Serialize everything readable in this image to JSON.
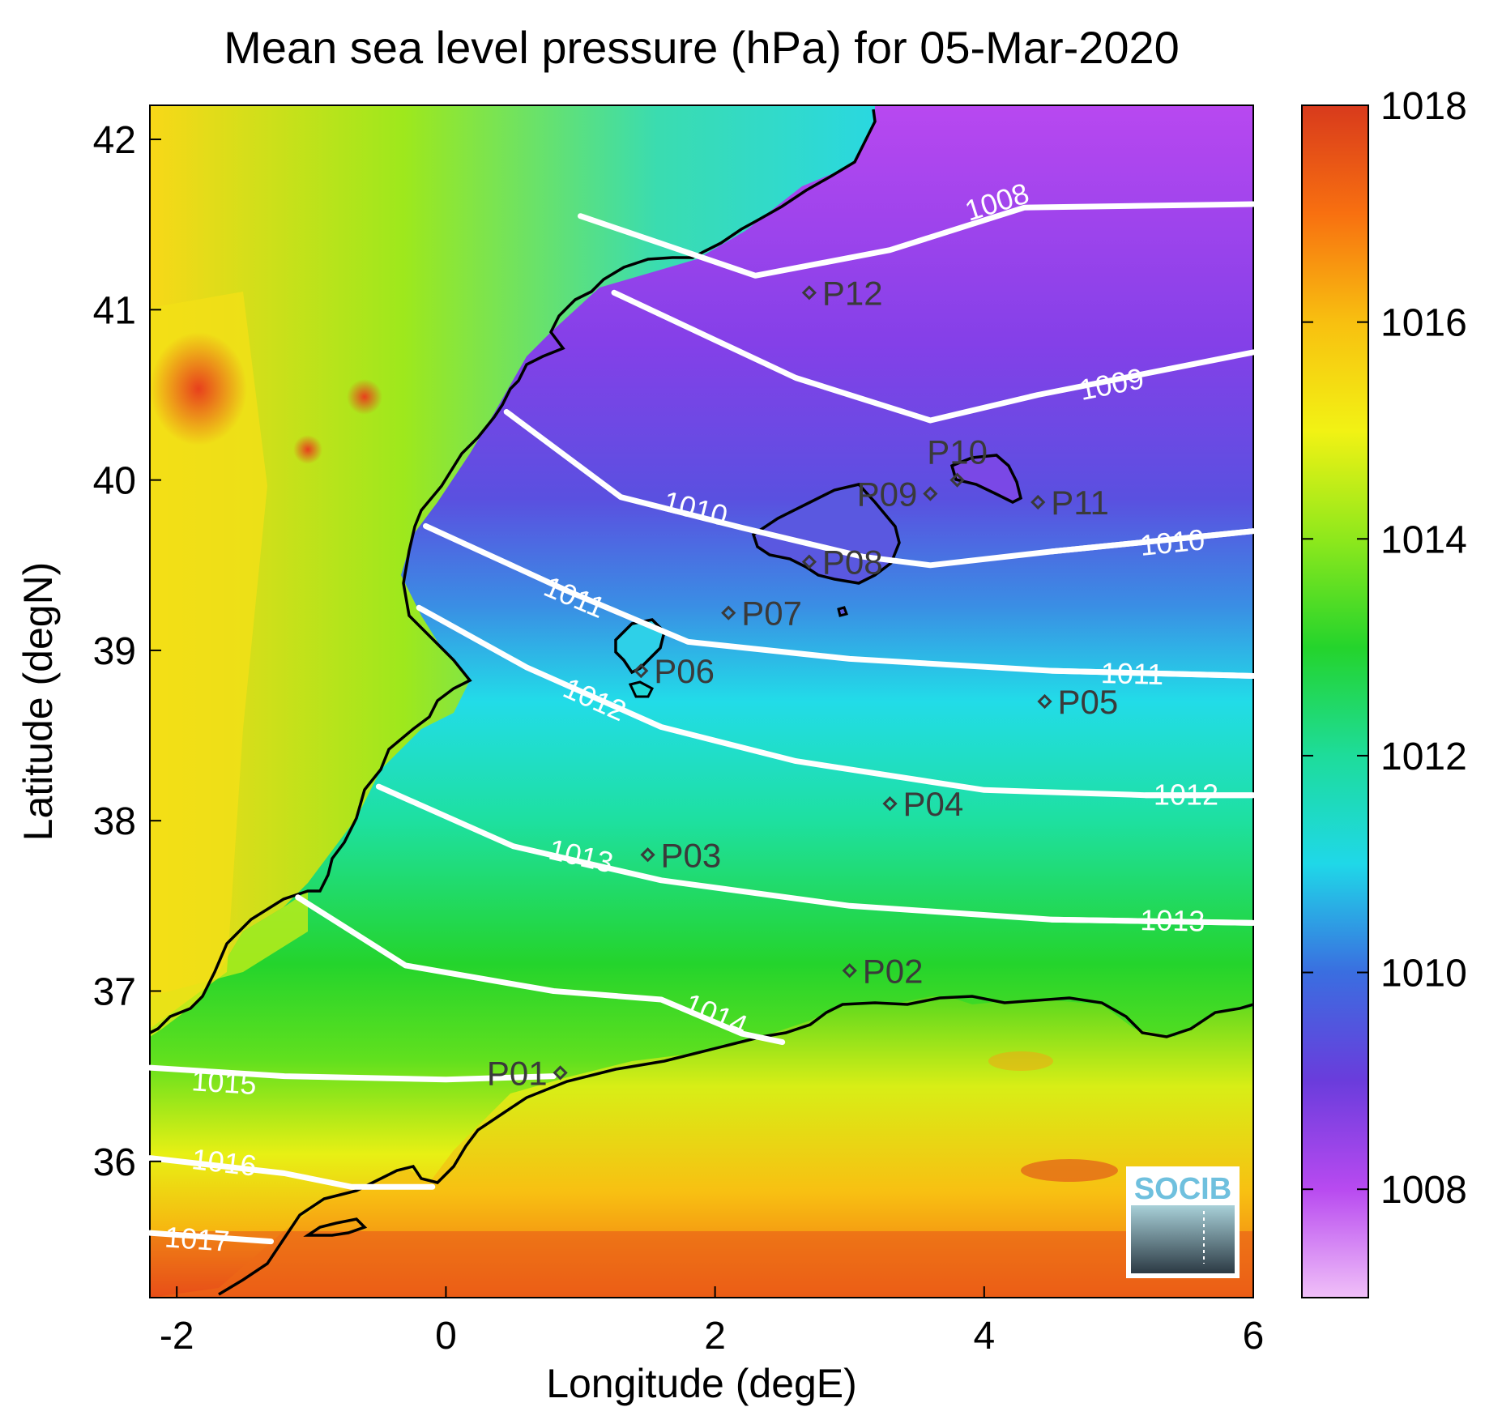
{
  "title": "Mean sea level pressure (hPa) for 05-Mar-2020",
  "x_axis": {
    "label": "Longitude (degE)",
    "range": [
      -2.2,
      6.0
    ],
    "ticks": [
      -2,
      0,
      2,
      4,
      6
    ],
    "tick_labels": [
      "-2",
      "0",
      "2",
      "4",
      "6"
    ]
  },
  "y_axis": {
    "label": "Latitude (degN)",
    "range": [
      35.2,
      42.2
    ],
    "ticks": [
      36,
      37,
      38,
      39,
      40,
      41,
      42
    ],
    "tick_labels": [
      "36",
      "37",
      "38",
      "39",
      "40",
      "41",
      "42"
    ]
  },
  "colorbar": {
    "range": [
      1007,
      1018
    ],
    "ticks": [
      1008,
      1010,
      1012,
      1014,
      1016,
      1018
    ],
    "tick_labels": [
      "1008",
      "1010",
      "1012",
      "1014",
      "1016",
      "1018"
    ],
    "colors": [
      "#f0c0f8",
      "#b84af0",
      "#6a3cdc",
      "#3a6ee0",
      "#1fd8e8",
      "#1edc9a",
      "#24d42c",
      "#8ee81c",
      "#f2f214",
      "#f8c010",
      "#f87010",
      "#d83a1c"
    ]
  },
  "contours": [
    {
      "label": "1008",
      "points": [
        [
          1.0,
          41.55
        ],
        [
          2.3,
          41.2
        ],
        [
          3.3,
          41.35
        ],
        [
          4.3,
          41.6
        ],
        [
          6.0,
          41.62
        ]
      ],
      "label_at": [
        4.1,
        41.62
      ]
    },
    {
      "label": "1009",
      "points": [
        [
          1.25,
          41.1
        ],
        [
          2.6,
          40.6
        ],
        [
          3.6,
          40.35
        ],
        [
          4.4,
          40.5
        ],
        [
          6.0,
          40.75
        ]
      ],
      "label_at": [
        4.95,
        40.55
      ]
    },
    {
      "label": "1010",
      "points": [
        [
          0.45,
          40.4
        ],
        [
          1.3,
          39.9
        ],
        [
          2.2,
          39.72
        ],
        [
          3.1,
          39.55
        ],
        [
          3.6,
          39.5
        ],
        [
          4.5,
          39.58
        ],
        [
          6.0,
          39.7
        ]
      ],
      "label_at": [
        1.85,
        39.82
      ]
    },
    {
      "label": "1010",
      "points": [
        [
          4.5,
          39.58
        ],
        [
          6.0,
          39.7
        ]
      ],
      "label_at": [
        5.4,
        39.62
      ]
    },
    {
      "label": "1011",
      "points": [
        [
          -0.15,
          39.73
        ],
        [
          0.9,
          39.35
        ],
        [
          1.8,
          39.05
        ],
        [
          3.0,
          38.95
        ],
        [
          4.5,
          38.88
        ],
        [
          6.0,
          38.85
        ]
      ],
      "label_at": [
        0.95,
        39.3
      ]
    },
    {
      "label": "1011",
      "points": [
        [
          4.5,
          38.88
        ],
        [
          6.0,
          38.85
        ]
      ],
      "label_at": [
        5.1,
        38.85
      ]
    },
    {
      "label": "1012",
      "points": [
        [
          -0.2,
          39.25
        ],
        [
          0.6,
          38.9
        ],
        [
          1.6,
          38.55
        ],
        [
          2.6,
          38.35
        ],
        [
          4.0,
          38.18
        ],
        [
          5.2,
          38.15
        ],
        [
          6.0,
          38.15
        ]
      ],
      "label_at": [
        1.1,
        38.7
      ]
    },
    {
      "label": "1012",
      "points": [
        [
          5.2,
          38.15
        ],
        [
          6.0,
          38.15
        ]
      ],
      "label_at": [
        5.5,
        38.14
      ]
    },
    {
      "label": "1013",
      "points": [
        [
          -0.5,
          38.2
        ],
        [
          0.5,
          37.85
        ],
        [
          1.6,
          37.65
        ],
        [
          3.0,
          37.5
        ],
        [
          4.5,
          37.42
        ],
        [
          6.0,
          37.4
        ]
      ],
      "label_at": [
        1.0,
        37.78
      ]
    },
    {
      "label": "1013",
      "points": [
        [
          4.5,
          37.42
        ],
        [
          6.0,
          37.4
        ]
      ],
      "label_at": [
        5.4,
        37.4
      ]
    },
    {
      "label": "1014",
      "points": [
        [
          -1.1,
          37.55
        ],
        [
          -0.3,
          37.15
        ],
        [
          0.8,
          37.0
        ],
        [
          1.6,
          36.95
        ],
        [
          2.2,
          36.75
        ],
        [
          2.5,
          36.7
        ]
      ],
      "label_at": [
        2.0,
        36.85
      ]
    },
    {
      "label": "1015",
      "points": [
        [
          -2.2,
          36.55
        ],
        [
          -1.2,
          36.5
        ],
        [
          0.0,
          36.48
        ],
        [
          0.8,
          36.5
        ]
      ],
      "label_at": [
        -1.65,
        36.45
      ]
    },
    {
      "label": "1016",
      "points": [
        [
          -2.2,
          36.02
        ],
        [
          -1.2,
          35.93
        ],
        [
          -0.7,
          35.85
        ],
        [
          -0.1,
          35.85
        ]
      ],
      "label_at": [
        -1.65,
        35.98
      ]
    },
    {
      "label": "1017",
      "points": [
        [
          -2.2,
          35.58
        ],
        [
          -1.3,
          35.53
        ]
      ],
      "label_at": [
        -1.85,
        35.53
      ]
    }
  ],
  "stations": [
    {
      "name": "P01",
      "lon": 0.85,
      "lat": 36.52,
      "label_side": "left"
    },
    {
      "name": "P02",
      "lon": 3.0,
      "lat": 37.12,
      "label_side": "right"
    },
    {
      "name": "P03",
      "lon": 1.5,
      "lat": 37.8,
      "label_side": "right"
    },
    {
      "name": "P04",
      "lon": 3.3,
      "lat": 38.1,
      "label_side": "right"
    },
    {
      "name": "P05",
      "lon": 4.45,
      "lat": 38.7,
      "label_side": "right"
    },
    {
      "name": "P06",
      "lon": 1.45,
      "lat": 38.88,
      "label_side": "right"
    },
    {
      "name": "P07",
      "lon": 2.1,
      "lat": 39.22,
      "label_side": "right"
    },
    {
      "name": "P08",
      "lon": 2.7,
      "lat": 39.52,
      "label_side": "right"
    },
    {
      "name": "P09",
      "lon": 3.6,
      "lat": 39.92,
      "label_side": "left"
    },
    {
      "name": "P10",
      "lon": 3.8,
      "lat": 40.0,
      "label_side": "top"
    },
    {
      "name": "P11",
      "lon": 4.4,
      "lat": 39.87,
      "label_side": "right"
    },
    {
      "name": "P12",
      "lon": 2.7,
      "lat": 41.1,
      "label_side": "right"
    }
  ],
  "logo": {
    "text": "SOCIB"
  },
  "colors": {
    "contour": "#ffffff",
    "coastline": "#000000",
    "station": "#3a3a3a"
  }
}
